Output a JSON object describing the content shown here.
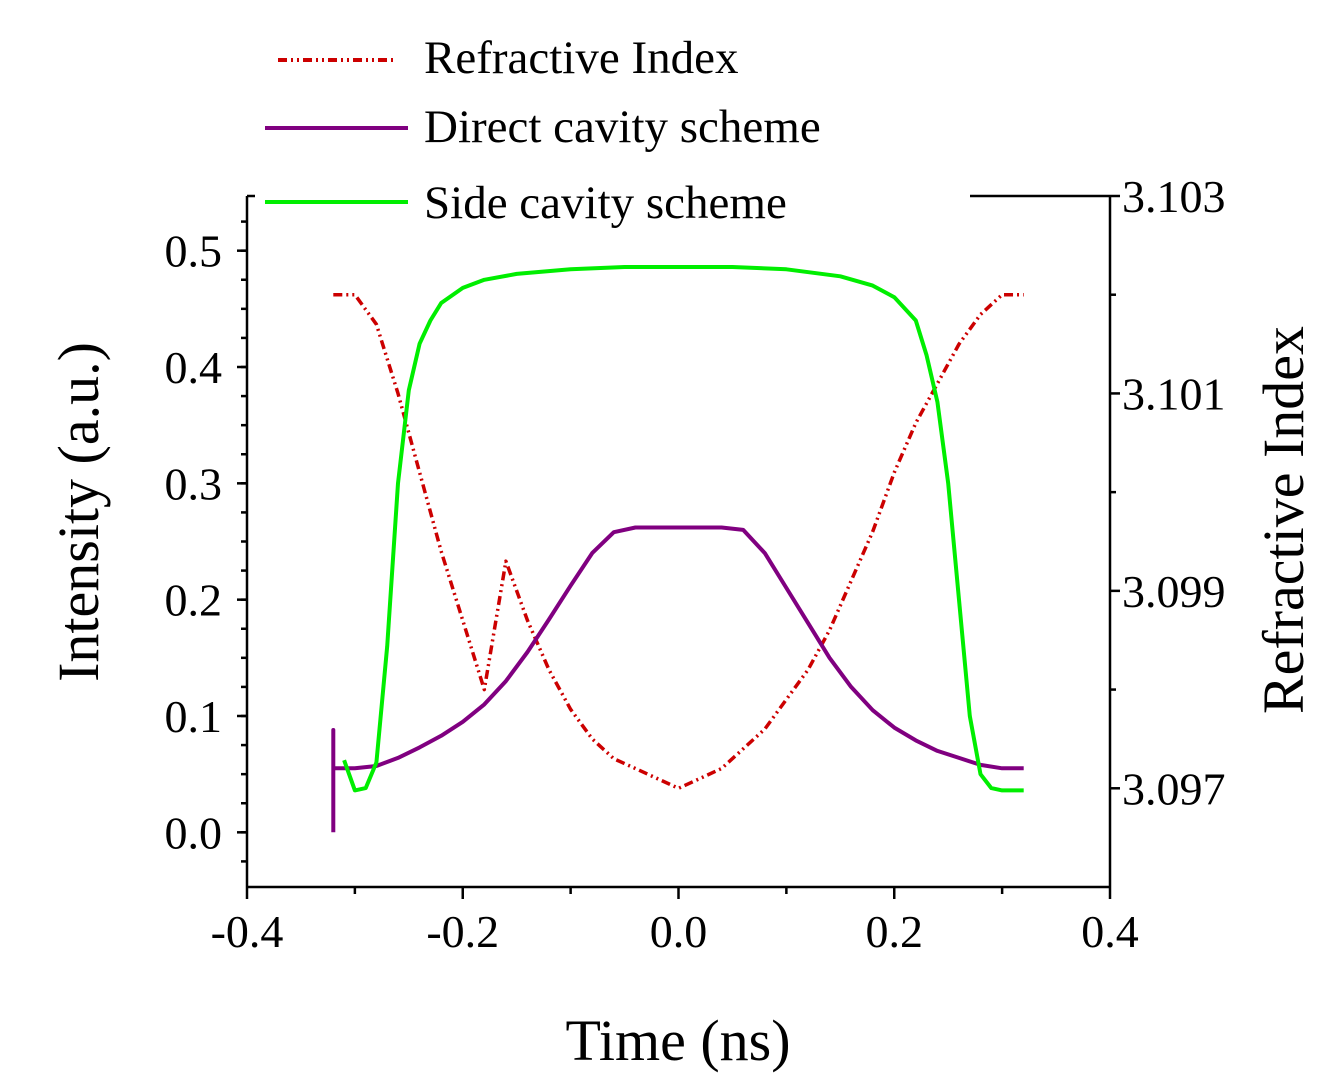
{
  "chart_data": {
    "type": "line",
    "title": "",
    "xlabel": "Time (ns)",
    "ylabel": "Intensity (a.u.)",
    "y2label": "Refractive Index",
    "xlim": [
      -0.4,
      0.4
    ],
    "ylim": [
      -0.047,
      0.547
    ],
    "y2lim": [
      3.096,
      3.103
    ],
    "x_ticks": [
      -0.4,
      -0.2,
      0.0,
      0.2,
      0.4
    ],
    "x_tick_labels": [
      "-0.4",
      "-0.2",
      "0.0",
      "0.2",
      "0.4"
    ],
    "y_ticks": [
      0.0,
      0.1,
      0.2,
      0.3,
      0.4,
      0.5
    ],
    "y_tick_labels": [
      "0.0",
      "0.1",
      "0.2",
      "0.3",
      "0.4",
      "0.5"
    ],
    "y2_ticks": [
      3.097,
      3.099,
      3.101,
      3.103
    ],
    "y2_tick_labels": [
      "3.097",
      "3.099",
      "3.101",
      "3.103"
    ],
    "legend_position": "top-left",
    "series": [
      {
        "name": "Refractive Index",
        "axis": "right",
        "color": "#cc0000",
        "style": "dash-dot-dot",
        "x": [
          -0.32,
          -0.3,
          -0.28,
          -0.26,
          -0.24,
          -0.22,
          -0.2,
          -0.18,
          -0.16,
          -0.14,
          -0.12,
          -0.1,
          -0.08,
          -0.06,
          -0.04,
          -0.02,
          0.0,
          0.02,
          0.04,
          0.06,
          0.08,
          0.1,
          0.12,
          0.14,
          0.16,
          0.18,
          0.2,
          0.22,
          0.24,
          0.26,
          0.28,
          0.3,
          0.32
        ],
        "values": [
          3.102,
          3.102,
          3.1017,
          3.101,
          3.1002,
          3.0994,
          3.0987,
          3.098,
          3.0993,
          3.0987,
          3.0982,
          3.0978,
          3.0975,
          3.0973,
          3.0972,
          3.0971,
          3.097,
          3.0971,
          3.0972,
          3.0974,
          3.0976,
          3.0979,
          3.0982,
          3.0986,
          3.0991,
          3.0996,
          3.1002,
          3.1007,
          3.1011,
          3.1015,
          3.1018,
          3.102,
          3.102
        ]
      },
      {
        "name": "Direct cavity scheme",
        "axis": "left",
        "color": "#800080",
        "style": "solid",
        "x": [
          -0.32,
          -0.32,
          -0.32,
          -0.3,
          -0.28,
          -0.26,
          -0.24,
          -0.22,
          -0.2,
          -0.18,
          -0.16,
          -0.14,
          -0.12,
          -0.1,
          -0.08,
          -0.06,
          -0.04,
          -0.02,
          0.0,
          0.02,
          0.04,
          0.06,
          0.08,
          0.1,
          0.12,
          0.14,
          0.16,
          0.18,
          0.2,
          0.22,
          0.24,
          0.26,
          0.28,
          0.3,
          0.32
        ],
        "values": [
          0.0,
          0.088,
          0.055,
          0.055,
          0.057,
          0.064,
          0.073,
          0.083,
          0.095,
          0.11,
          0.13,
          0.155,
          0.183,
          0.212,
          0.24,
          0.258,
          0.262,
          0.262,
          0.262,
          0.262,
          0.262,
          0.26,
          0.24,
          0.21,
          0.18,
          0.15,
          0.125,
          0.105,
          0.09,
          0.079,
          0.07,
          0.064,
          0.058,
          0.055,
          0.055
        ]
      },
      {
        "name": "Side cavity scheme",
        "axis": "left",
        "color": "#00ee00",
        "style": "solid",
        "x": [
          -0.31,
          -0.3,
          -0.29,
          -0.28,
          -0.27,
          -0.26,
          -0.25,
          -0.24,
          -0.23,
          -0.22,
          -0.2,
          -0.18,
          -0.15,
          -0.1,
          -0.05,
          0.0,
          0.05,
          0.1,
          0.15,
          0.18,
          0.2,
          0.22,
          0.23,
          0.24,
          0.25,
          0.26,
          0.27,
          0.28,
          0.29,
          0.3,
          0.32
        ],
        "values": [
          0.062,
          0.036,
          0.038,
          0.06,
          0.16,
          0.3,
          0.38,
          0.42,
          0.44,
          0.455,
          0.468,
          0.475,
          0.48,
          0.484,
          0.486,
          0.486,
          0.486,
          0.484,
          0.478,
          0.47,
          0.46,
          0.44,
          0.41,
          0.37,
          0.3,
          0.2,
          0.1,
          0.05,
          0.038,
          0.036,
          0.036
        ]
      }
    ]
  }
}
